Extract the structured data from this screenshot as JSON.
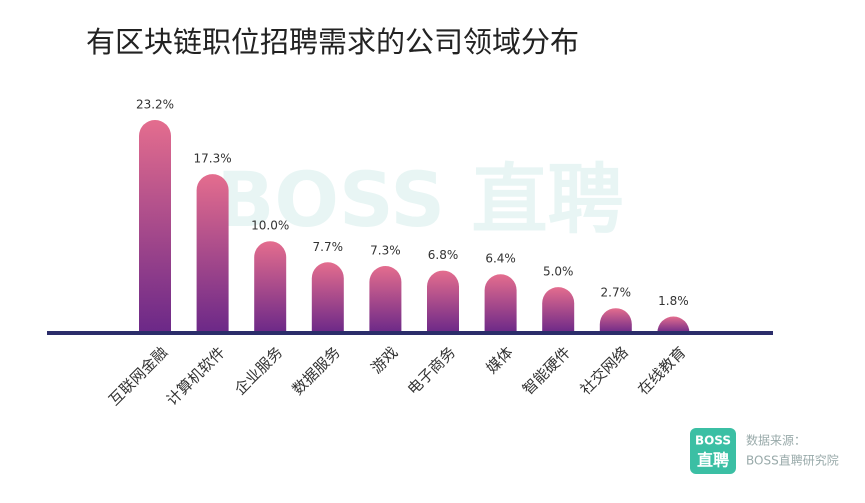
{
  "chart_data": {
    "type": "bar",
    "title": "有区块链职位招聘需求的公司领域分布",
    "categories": [
      "互联网金融",
      "计算机软件",
      "企业服务",
      "数据服务",
      "游戏",
      "电子商务",
      "媒体",
      "智能硬件",
      "社交网络",
      "在线教育"
    ],
    "values": [
      23.2,
      17.3,
      10.0,
      7.7,
      7.3,
      6.8,
      6.4,
      5.0,
      2.7,
      1.8
    ],
    "value_labels": [
      "23.2%",
      "17.3%",
      "10.0%",
      "7.7%",
      "7.3%",
      "6.8%",
      "6.4%",
      "5.0%",
      "2.7%",
      "1.8%"
    ],
    "color": [
      "#e46d8e",
      "#6b2888"
    ],
    "watermark": "BOSS 直聘",
    "logo": [
      "BOSS",
      "直聘"
    ],
    "source": [
      "数据来源：",
      "BOSS直聘研究院"
    ]
  }
}
